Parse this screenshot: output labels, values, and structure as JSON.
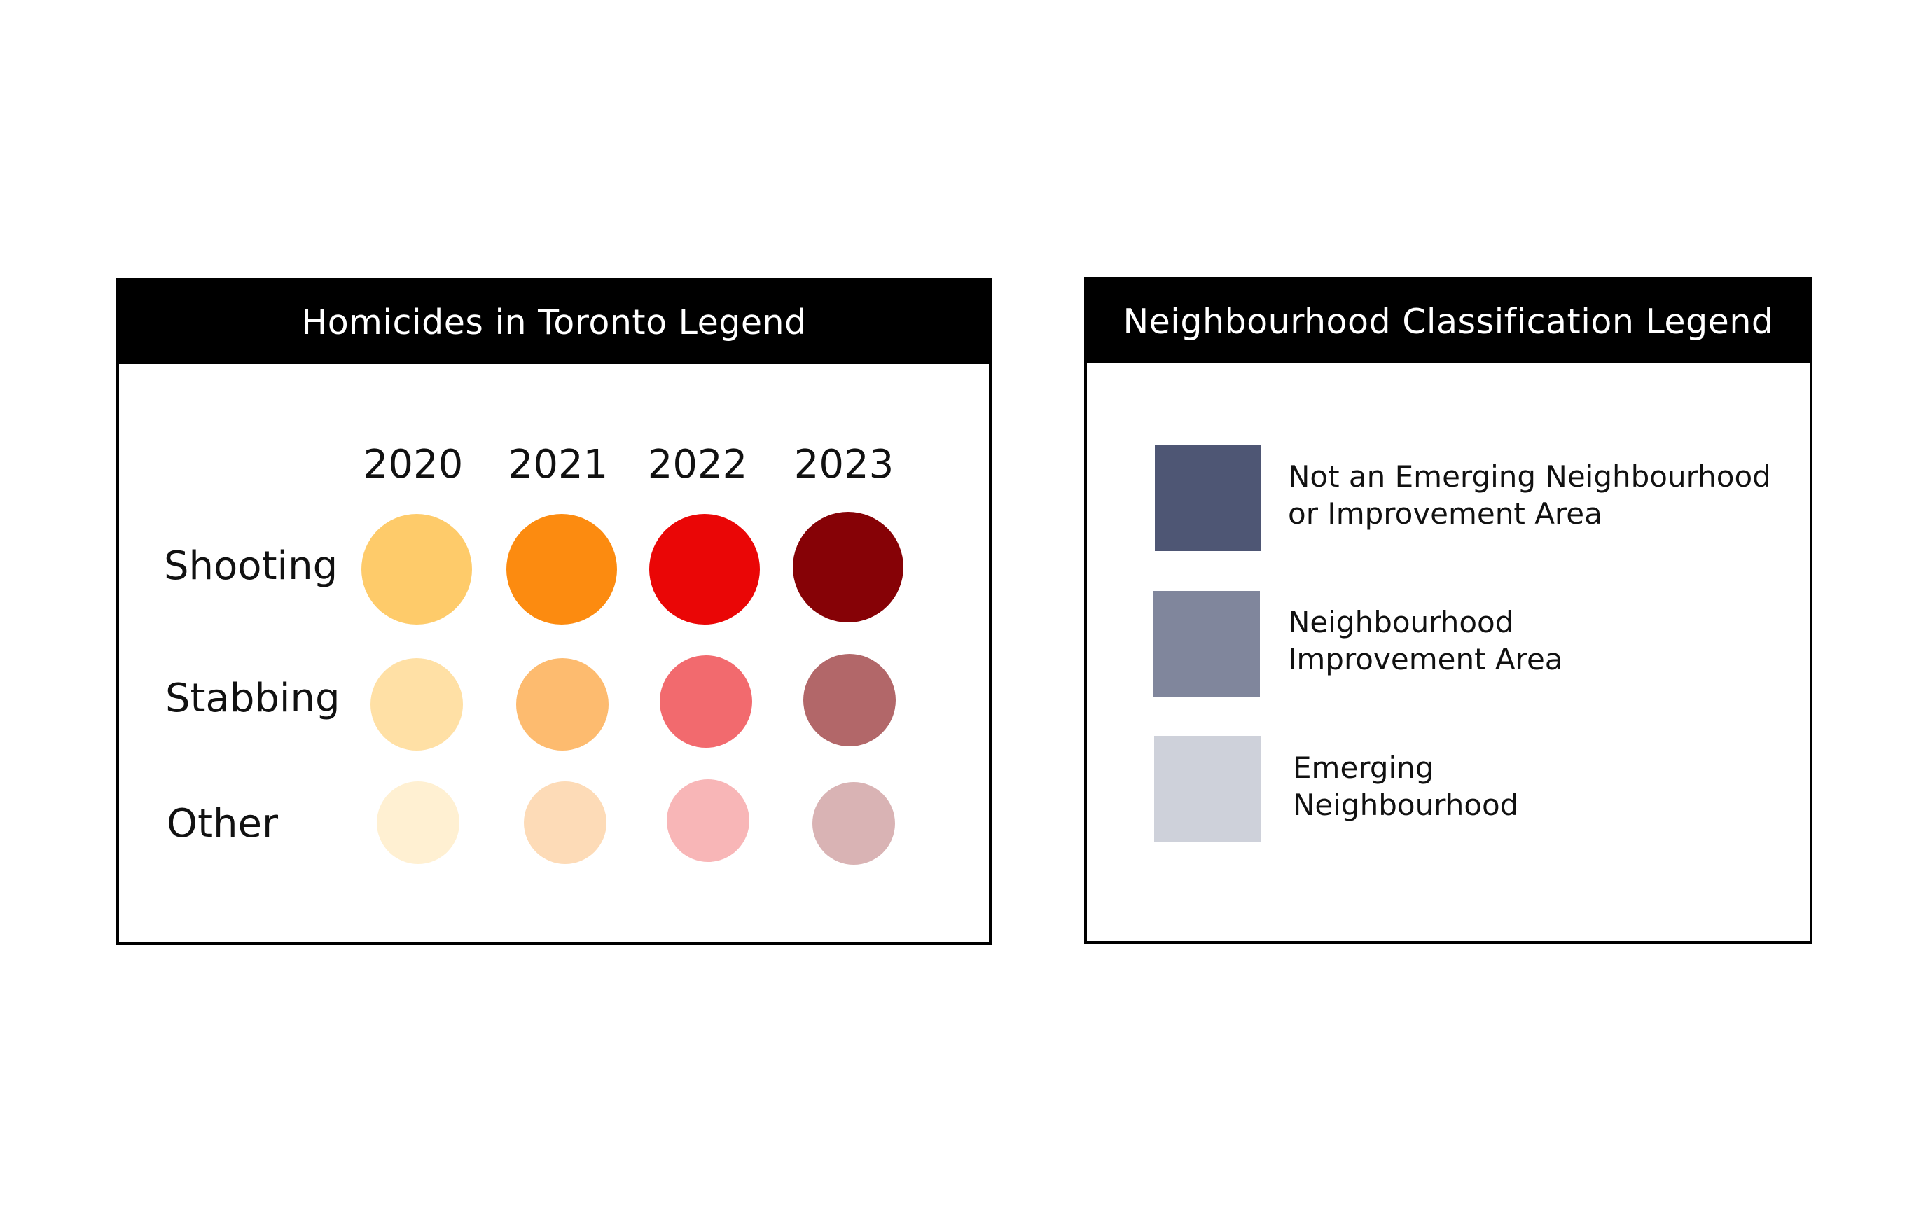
{
  "homicides": {
    "title": "Homicides in Toronto Legend",
    "years": [
      "2020",
      "2021",
      "2022",
      "2023"
    ],
    "rows": [
      {
        "label": "Shooting",
        "colors": [
          "#FECB6A",
          "#FC8B10",
          "#EA0606",
          "#860206"
        ]
      },
      {
        "label": "Stabbing",
        "colors": [
          "#FFE0A5",
          "#FDBB6F",
          "#F26A6E",
          "#B26769"
        ]
      },
      {
        "label": "Other",
        "colors": [
          "#FFF0D2",
          "#FDDBB7",
          "#F8B6B7",
          "#D9B3B4"
        ]
      }
    ]
  },
  "neighbourhood": {
    "title": "Neighbourhood Classification Legend",
    "items": [
      {
        "line1": "Not an Emerging Neighbourhood",
        "line2": "or Improvement Area",
        "color": "#4E5674"
      },
      {
        "line1": "Neighbourhood",
        "line2": "Improvement Area",
        "color": "#80869C"
      },
      {
        "line1": "Emerging",
        "line2": "Neighbourhood",
        "color": "#CED1DA"
      }
    ]
  }
}
